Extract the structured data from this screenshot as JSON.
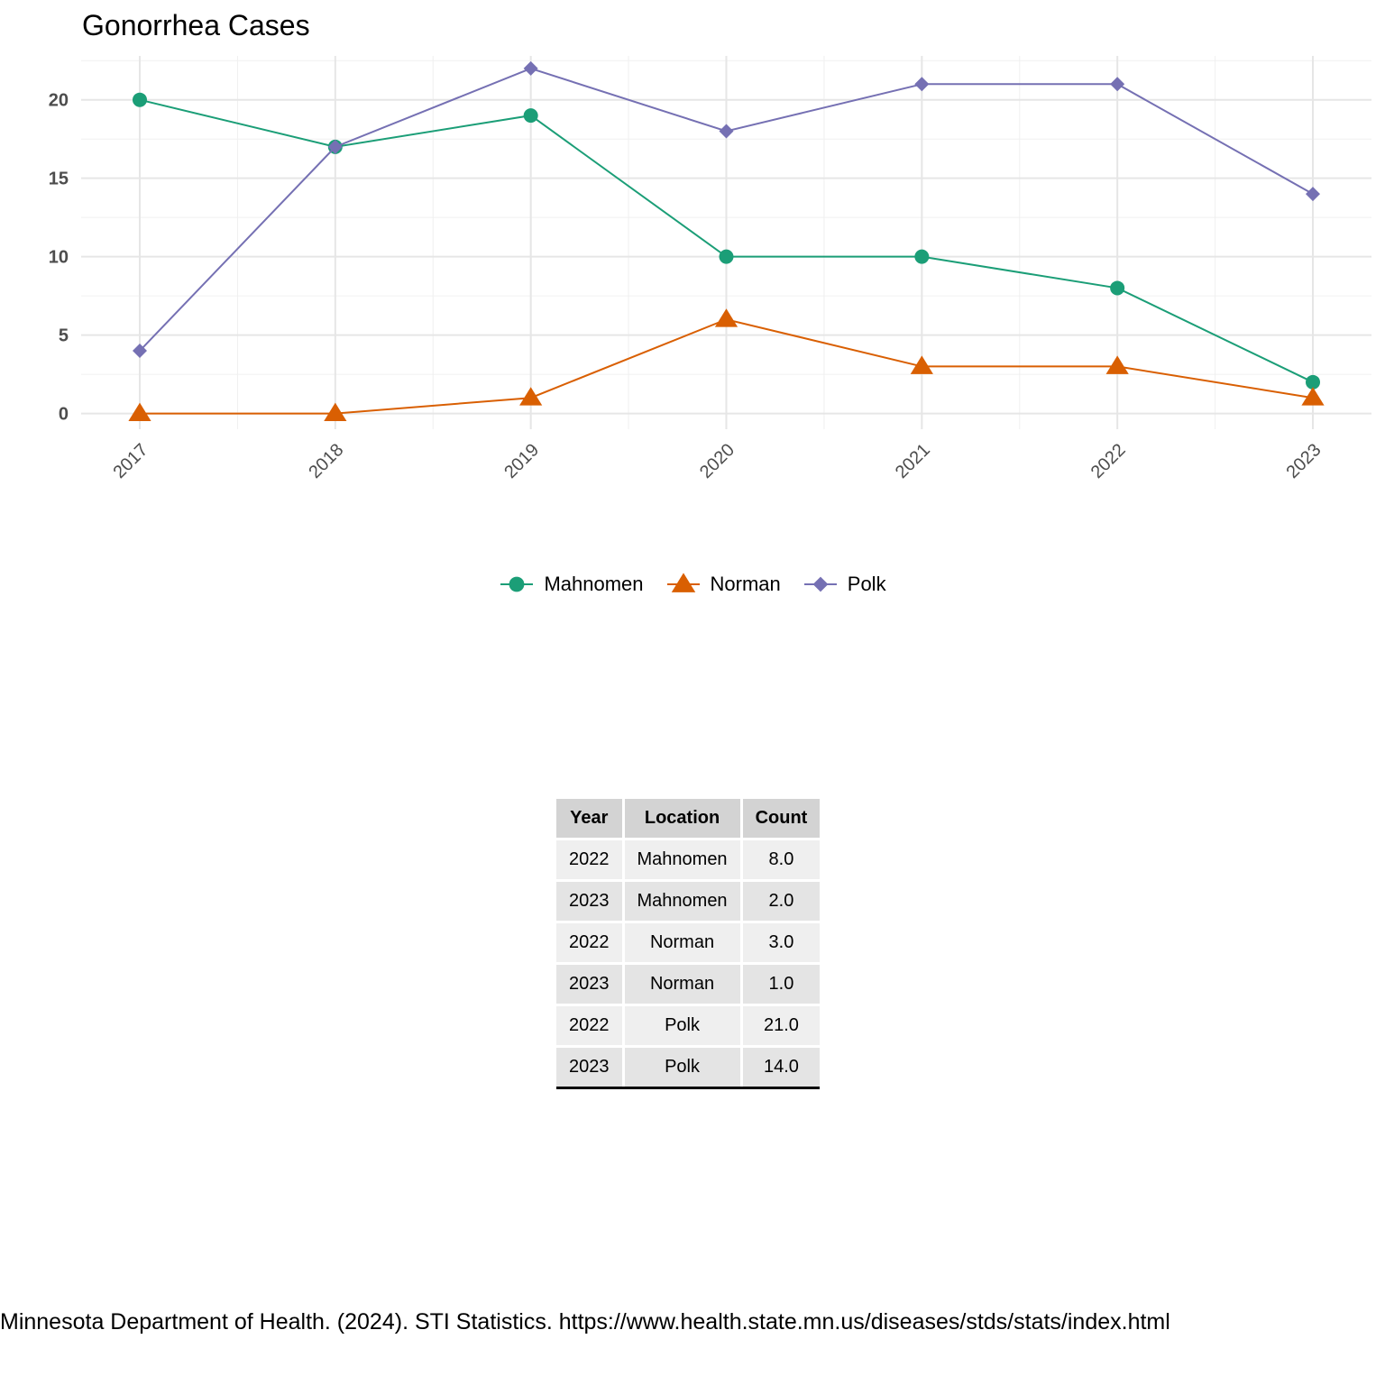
{
  "chart_data": {
    "type": "line",
    "title": "Gonorrhea Cases",
    "xlabel": "",
    "ylabel": "",
    "x": [
      "2017",
      "2018",
      "2019",
      "2020",
      "2021",
      "2022",
      "2023"
    ],
    "ylim": [
      -1,
      22.8
    ],
    "yticks": [
      0,
      5,
      10,
      15,
      20
    ],
    "grid": true,
    "legend_position": "bottom",
    "series": [
      {
        "name": "Mahnomen",
        "marker": "circle",
        "color": "#1b9e77",
        "values": [
          20,
          17,
          19,
          10,
          10,
          8,
          2
        ]
      },
      {
        "name": "Norman",
        "marker": "triangle",
        "color": "#d95f02",
        "values": [
          0,
          0,
          1,
          6,
          3,
          3,
          1
        ]
      },
      {
        "name": "Polk",
        "marker": "diamond",
        "color": "#7570b3",
        "values": [
          4,
          17,
          22,
          18,
          21,
          21,
          14
        ]
      }
    ]
  },
  "table": {
    "headers": [
      "Year",
      "Location",
      "Count"
    ],
    "rows": [
      [
        "2022",
        "Mahnomen",
        "8.0"
      ],
      [
        "2023",
        "Mahnomen",
        "2.0"
      ],
      [
        "2022",
        "Norman",
        "3.0"
      ],
      [
        "2023",
        "Norman",
        "1.0"
      ],
      [
        "2022",
        "Polk",
        "21.0"
      ],
      [
        "2023",
        "Polk",
        "14.0"
      ]
    ]
  },
  "source": "Minnesota Department of Health. (2024). STI Statistics. https://www.health.state.mn.us/diseases/stds/stats/index.html"
}
